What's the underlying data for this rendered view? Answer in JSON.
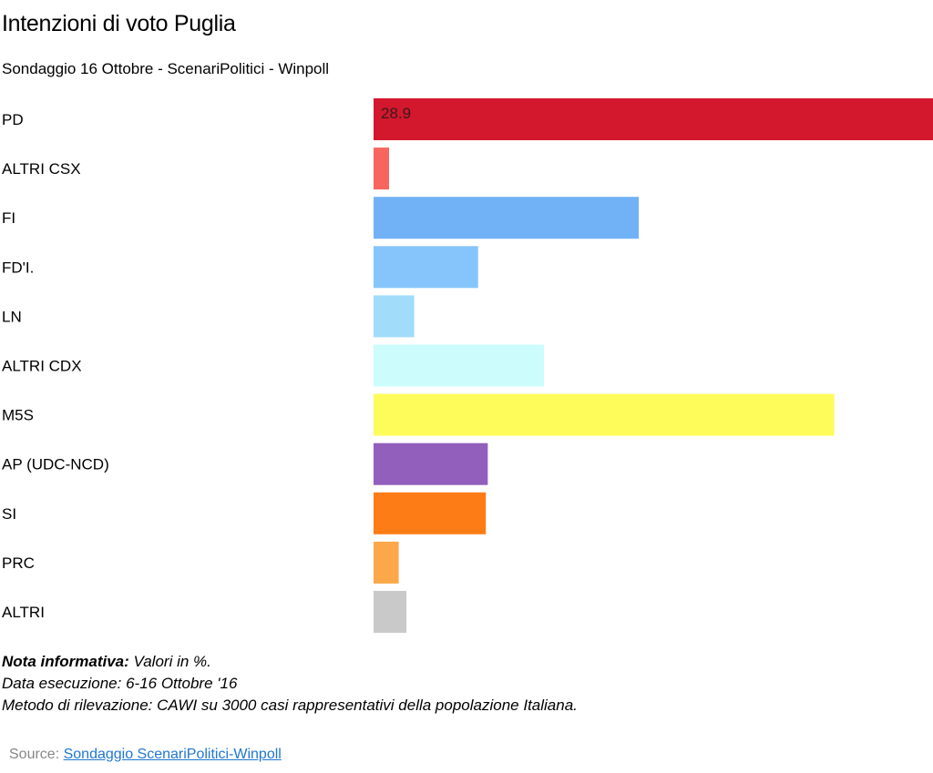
{
  "chart_data": {
    "type": "bar",
    "orientation": "horizontal",
    "title": "Intenzioni di voto Puglia",
    "subtitle": "Sondaggio 16 Ottobre - ScenariPolitici - Winpoll",
    "categories": [
      "PD",
      "ALTRI CSX",
      "FI",
      "FD'I.",
      "LN",
      "ALTRI CDX",
      "M5S",
      "AP (UDC-NCD)",
      "SI",
      "PRC",
      "ALTRI"
    ],
    "values": [
      28.9,
      0.8,
      13.7,
      5.4,
      2.1,
      8.8,
      23.8,
      5.9,
      5.8,
      1.3,
      1.7
    ],
    "data_labels": [
      "28.9",
      "",
      "",
      "",
      "",
      "",
      "",
      "",
      "",
      "",
      ""
    ],
    "colors": [
      "#d3172d",
      "#f8655f",
      "#70b2f5",
      "#86c5fb",
      "#a2dcfb",
      "#cdfcfd",
      "#fefc5a",
      "#925fbd",
      "#fe7c16",
      "#fca749",
      "#c9c9c9"
    ],
    "xlim": [
      0,
      28.9
    ],
    "grid": false,
    "legend": "none"
  },
  "notes": {
    "line1_bold": "Nota informativa:",
    "line1_rest": " Valori in %.",
    "line2": "Data esecuzione: 6-16  Ottobre '16",
    "line3": "Metodo di rilevazione: CAWI su 3000 casi rappresentativi della popolazione Italiana."
  },
  "source": {
    "label": "Source: ",
    "link_text": "Sondaggio ScenariPolitici-Winpoll"
  }
}
